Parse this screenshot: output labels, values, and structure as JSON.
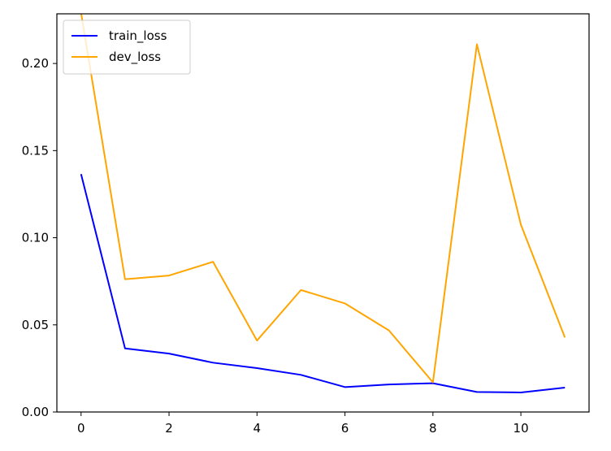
{
  "chart_data": {
    "type": "line",
    "title": "",
    "xlabel": "",
    "ylabel": "",
    "x": [
      0,
      1,
      2,
      3,
      4,
      5,
      6,
      7,
      8,
      9,
      10,
      11
    ],
    "xlim": [
      -0.55,
      11.55
    ],
    "ylim": [
      0.0,
      0.2285
    ],
    "xticks": [
      0,
      2,
      4,
      6,
      8,
      10
    ],
    "xtick_labels": [
      "0",
      "2",
      "4",
      "6",
      "8",
      "10"
    ],
    "yticks": [
      0.0,
      0.05,
      0.1,
      0.15,
      0.2
    ],
    "ytick_labels": [
      "0.00",
      "0.05",
      "0.10",
      "0.15",
      "0.20"
    ],
    "grid": false,
    "legend_position": "top-left",
    "series": [
      {
        "name": "train_loss",
        "color": "#0000ff",
        "values": [
          0.1365,
          0.0365,
          0.0335,
          0.0283,
          0.0252,
          0.0213,
          0.0143,
          0.0158,
          0.0165,
          0.0115,
          0.0112,
          0.014
        ]
      },
      {
        "name": "dev_loss",
        "color": "#ffa500",
        "values": [
          0.229,
          0.0762,
          0.0783,
          0.0862,
          0.041,
          0.07,
          0.0623,
          0.0468,
          0.017,
          0.211,
          0.1075,
          0.0428
        ]
      }
    ]
  }
}
